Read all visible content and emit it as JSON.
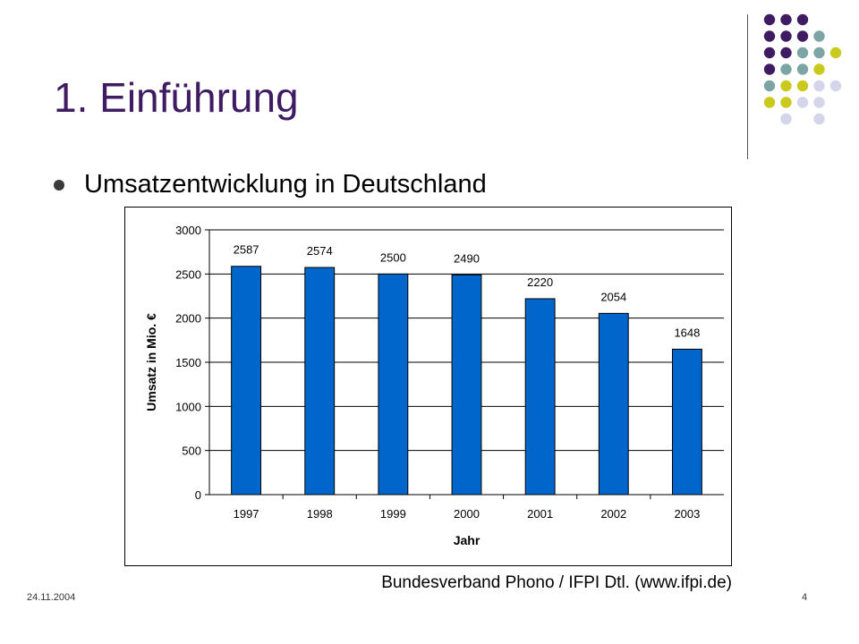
{
  "slide": {
    "title": "1. Einführung",
    "bullet": "Umsatzentwicklung in Deutschland",
    "source": "Bundesverband Phono / IFPI Dtl. (www.ifpi.de)",
    "date": "24.11.2004",
    "page_number": "4"
  },
  "colors": {
    "title": "#3f1b63",
    "bar": "#0066cc",
    "dot_purple": "#3f1b63",
    "dot_teal": "#7da4a4",
    "dot_olive": "#c9c91e",
    "dot_lavender": "#d4d4ea"
  },
  "decor": {
    "dot_grid": [
      [
        "purple",
        "purple",
        "purple",
        "",
        "",
        ""
      ],
      [
        "purple",
        "purple",
        "purple",
        "teal",
        "",
        ""
      ],
      [
        "purple",
        "purple",
        "teal",
        "teal",
        "olive",
        ""
      ],
      [
        "purple",
        "teal",
        "teal",
        "olive",
        "",
        ""
      ],
      [
        "teal",
        "olive",
        "olive",
        "lavender",
        "lavender",
        ""
      ],
      [
        "olive",
        "olive",
        "lavender",
        "lavender",
        "",
        ""
      ],
      [
        "",
        "lavender",
        "",
        "lavender",
        "",
        ""
      ]
    ]
  },
  "chart_data": {
    "type": "bar",
    "categories": [
      "1997",
      "1998",
      "1999",
      "2000",
      "2001",
      "2002",
      "2003"
    ],
    "values": [
      2587,
      2574,
      2500,
      2490,
      2220,
      2054,
      1648
    ],
    "data_labels": [
      "2587",
      "2574",
      "2500",
      "2490",
      "2220",
      "2054",
      "1648"
    ],
    "xlabel": "Jahr",
    "ylabel": "Umsatz in Mio. €",
    "ylim": [
      0,
      3000
    ],
    "yticks": [
      "0",
      "500",
      "1000",
      "1500",
      "2000",
      "2500",
      "3000"
    ],
    "grid": true,
    "legend": "none"
  }
}
